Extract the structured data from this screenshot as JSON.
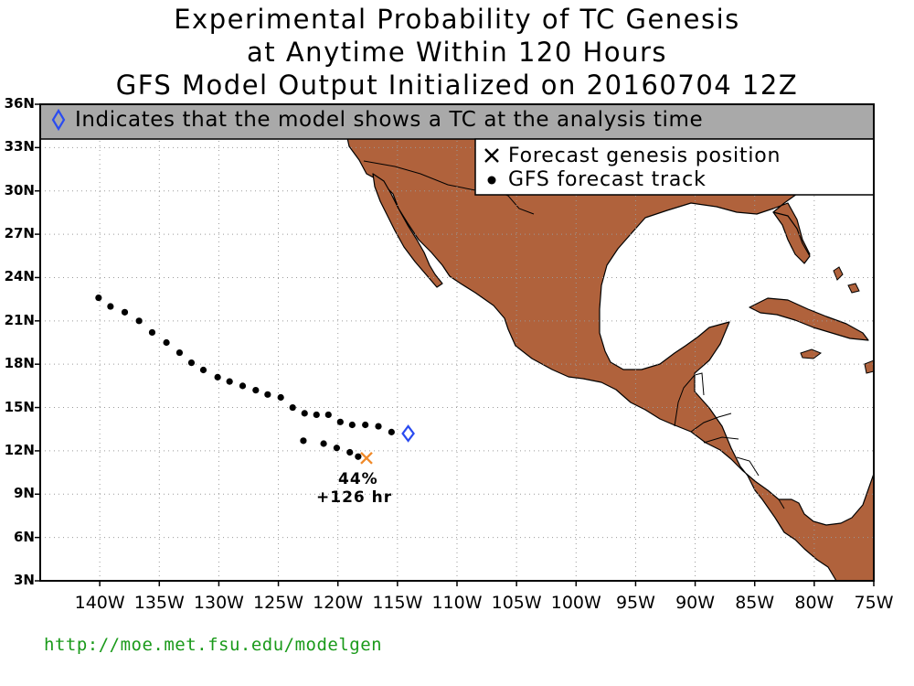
{
  "title": {
    "line1": "Experimental Probability of TC Genesis",
    "line2": "at Anytime Within 120 Hours",
    "line3": "GFS Model Output Initialized on 20160704 12Z"
  },
  "banner": {
    "text": "Indicates that the model shows a TC at the analysis time",
    "icon": "diamond-outline-icon"
  },
  "legend": {
    "genesis_label": "Forecast genesis position",
    "track_label": "GFS forecast track",
    "genesis_icon": "x-mark-icon",
    "track_icon": "dot-icon"
  },
  "annotation": {
    "probability": "44%",
    "lead_time": "+126 hr"
  },
  "footer_url": "http://moe.met.fsu.edu/modelgen",
  "colors": {
    "land": "#b0623c",
    "ocean": "#ffffff",
    "banner_bg": "#a9a9a9",
    "analysis_diamond": "#2a4bf0",
    "genesis_x": "#f08a2a",
    "footer_link": "#1a9a1a"
  },
  "chart_data": {
    "type": "scatter",
    "xlim": [
      -145,
      -75
    ],
    "ylim": [
      3,
      36
    ],
    "grid": true,
    "x_ticks": [
      {
        "value": -140,
        "label": "140W"
      },
      {
        "value": -135,
        "label": "135W"
      },
      {
        "value": -130,
        "label": "130W"
      },
      {
        "value": -125,
        "label": "125W"
      },
      {
        "value": -120,
        "label": "120W"
      },
      {
        "value": -115,
        "label": "115W"
      },
      {
        "value": -110,
        "label": "110W"
      },
      {
        "value": -105,
        "label": "105W"
      },
      {
        "value": -100,
        "label": "100W"
      },
      {
        "value": -95,
        "label": "95W"
      },
      {
        "value": -90,
        "label": "90W"
      },
      {
        "value": -85,
        "label": "85W"
      },
      {
        "value": -80,
        "label": "80W"
      },
      {
        "value": -75,
        "label": "75W"
      }
    ],
    "y_ticks": [
      {
        "value": 3,
        "label": "3N"
      },
      {
        "value": 6,
        "label": "6N"
      },
      {
        "value": 9,
        "label": "9N"
      },
      {
        "value": 12,
        "label": "12N"
      },
      {
        "value": 15,
        "label": "15N"
      },
      {
        "value": 18,
        "label": "18N"
      },
      {
        "value": 21,
        "label": "21N"
      },
      {
        "value": 24,
        "label": "24N"
      },
      {
        "value": 27,
        "label": "27N"
      },
      {
        "value": 30,
        "label": "30N"
      },
      {
        "value": 33,
        "label": "33N"
      },
      {
        "value": 36,
        "label": "36N"
      }
    ],
    "analysis_position": {
      "lon": -114.1,
      "lat": 13.2
    },
    "genesis_position": {
      "lon": -117.6,
      "lat": 11.5,
      "probability_pct": 44,
      "lead_hr": 126
    },
    "series": [
      {
        "points": [
          {
            "lon": -140.1,
            "lat": 22.6
          },
          {
            "lon": -139.1,
            "lat": 22.0
          },
          {
            "lon": -137.9,
            "lat": 21.6
          },
          {
            "lon": -136.7,
            "lat": 21.0
          },
          {
            "lon": -135.6,
            "lat": 20.2
          },
          {
            "lon": -134.4,
            "lat": 19.5
          },
          {
            "lon": -133.3,
            "lat": 18.8
          },
          {
            "lon": -132.3,
            "lat": 18.1
          },
          {
            "lon": -131.3,
            "lat": 17.6
          },
          {
            "lon": -130.1,
            "lat": 17.1
          },
          {
            "lon": -129.1,
            "lat": 16.8
          },
          {
            "lon": -128.0,
            "lat": 16.5
          },
          {
            "lon": -126.9,
            "lat": 16.2
          },
          {
            "lon": -125.9,
            "lat": 15.9
          },
          {
            "lon": -124.8,
            "lat": 15.7
          },
          {
            "lon": -123.8,
            "lat": 15.0
          },
          {
            "lon": -122.8,
            "lat": 14.6
          },
          {
            "lon": -121.8,
            "lat": 14.5
          },
          {
            "lon": -120.8,
            "lat": 14.5
          },
          {
            "lon": -119.8,
            "lat": 14.0
          },
          {
            "lon": -118.8,
            "lat": 13.8
          },
          {
            "lon": -117.7,
            "lat": 13.8
          },
          {
            "lon": -116.6,
            "lat": 13.7
          },
          {
            "lon": -115.5,
            "lat": 13.3
          }
        ]
      },
      {
        "points": [
          {
            "lon": -122.9,
            "lat": 12.7
          },
          {
            "lon": -121.2,
            "lat": 12.5
          },
          {
            "lon": -120.1,
            "lat": 12.2
          },
          {
            "lon": -119.0,
            "lat": 11.9
          },
          {
            "lon": -118.3,
            "lat": 11.6
          }
        ]
      }
    ]
  }
}
